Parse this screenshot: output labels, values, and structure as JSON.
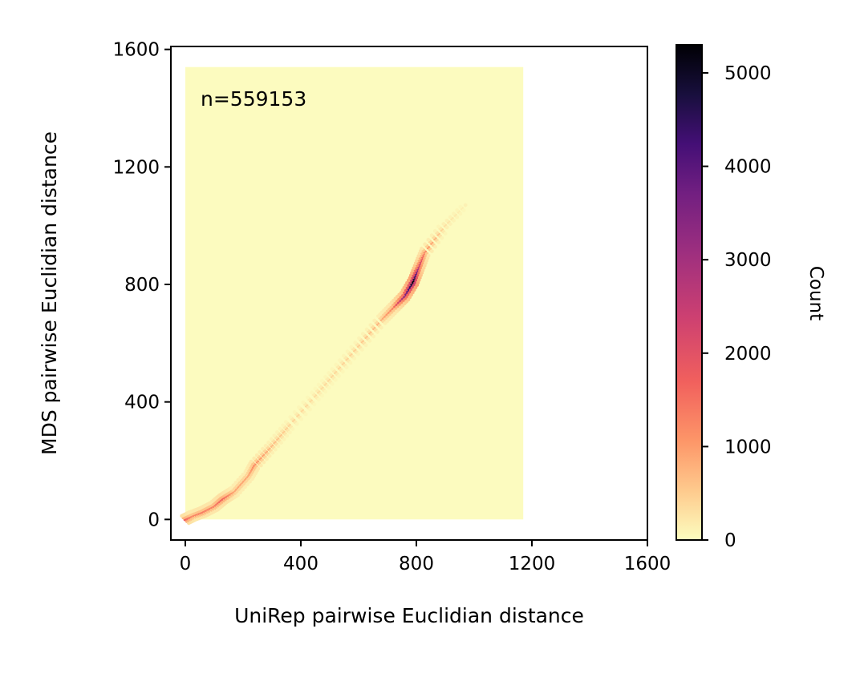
{
  "chart_data": {
    "type": "heatmap",
    "subtype": "hexbin",
    "title": "",
    "xlabel": "UniRep pairwise Euclidian distance",
    "ylabel": "MDS pairwise Euclidian distance",
    "xlim": [
      -50,
      1600
    ],
    "ylim": [
      -70,
      1610
    ],
    "xticks": [
      0,
      400,
      800,
      1200,
      1600
    ],
    "yticks": [
      0,
      400,
      800,
      1200,
      1600
    ],
    "hex_extent": {
      "x": [
        0,
        1170
      ],
      "y": [
        0,
        1540
      ]
    },
    "annotation": "n=559153",
    "colormap": "magma_r",
    "colorbar": {
      "label": "Count",
      "min": 0,
      "max": 5300,
      "ticks": [
        0,
        1000,
        2000,
        3000,
        4000,
        5000
      ]
    },
    "density_ridge": [
      {
        "x": 0,
        "y": 0,
        "count": 1800
      },
      {
        "x": 25,
        "y": 12,
        "count": 1200
      },
      {
        "x": 60,
        "y": 25,
        "count": 1400
      },
      {
        "x": 100,
        "y": 45,
        "count": 1300
      },
      {
        "x": 130,
        "y": 70,
        "count": 1700
      },
      {
        "x": 170,
        "y": 95,
        "count": 900
      },
      {
        "x": 220,
        "y": 150,
        "count": 900
      },
      {
        "x": 240,
        "y": 185,
        "count": 1200
      },
      {
        "x": 300,
        "y": 250,
        "count": 700
      },
      {
        "x": 360,
        "y": 320,
        "count": 450
      },
      {
        "x": 450,
        "y": 420,
        "count": 350
      },
      {
        "x": 520,
        "y": 500,
        "count": 400
      },
      {
        "x": 600,
        "y": 590,
        "count": 500
      },
      {
        "x": 680,
        "y": 680,
        "count": 800
      },
      {
        "x": 720,
        "y": 720,
        "count": 1300
      },
      {
        "x": 760,
        "y": 760,
        "count": 3200
      },
      {
        "x": 790,
        "y": 810,
        "count": 5200
      },
      {
        "x": 810,
        "y": 860,
        "count": 2500
      },
      {
        "x": 830,
        "y": 910,
        "count": 1200
      },
      {
        "x": 900,
        "y": 1000,
        "count": 300
      },
      {
        "x": 970,
        "y": 1070,
        "count": 120
      }
    ],
    "colors": {
      "background_fill": "#fcfbbf",
      "low": "#fcfdbf",
      "mid": "#e85362",
      "high": "#000004"
    },
    "grid": false
  }
}
